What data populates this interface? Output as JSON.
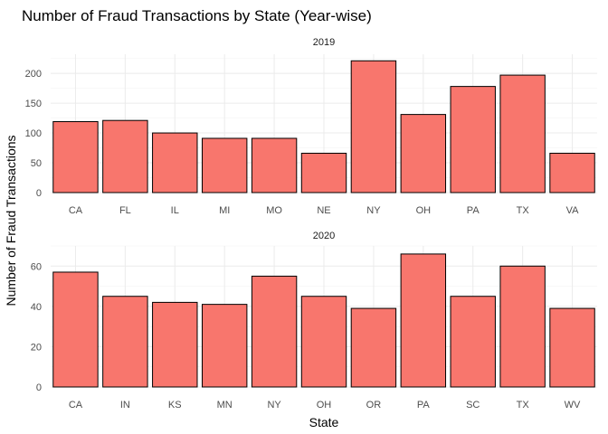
{
  "chart_data": {
    "type": "bar",
    "title": "Number of Fraud Transactions by State (Year-wise)",
    "xlabel": "State",
    "ylabel": "Number of Fraud Transactions",
    "bar_color": "#f8766d",
    "bar_outline": "#000000",
    "grid": true,
    "panels": [
      {
        "name": "2019",
        "categories": [
          "CA",
          "FL",
          "IL",
          "MI",
          "MO",
          "NE",
          "NY",
          "OH",
          "PA",
          "TX",
          "VA"
        ],
        "values": [
          119,
          121,
          100,
          91,
          91,
          66,
          221,
          131,
          178,
          197,
          66
        ],
        "ylim": [
          0,
          232
        ],
        "yticks": [
          0,
          50,
          100,
          150,
          200
        ]
      },
      {
        "name": "2020",
        "categories": [
          "CA",
          "IN",
          "KS",
          "MN",
          "NY",
          "OH",
          "OR",
          "PA",
          "SC",
          "TX",
          "WV"
        ],
        "values": [
          57,
          45,
          42,
          41,
          55,
          45,
          39,
          66,
          45,
          60,
          39
        ],
        "ylim": [
          0,
          70
        ],
        "yticks": [
          0,
          20,
          40,
          60
        ]
      }
    ]
  }
}
